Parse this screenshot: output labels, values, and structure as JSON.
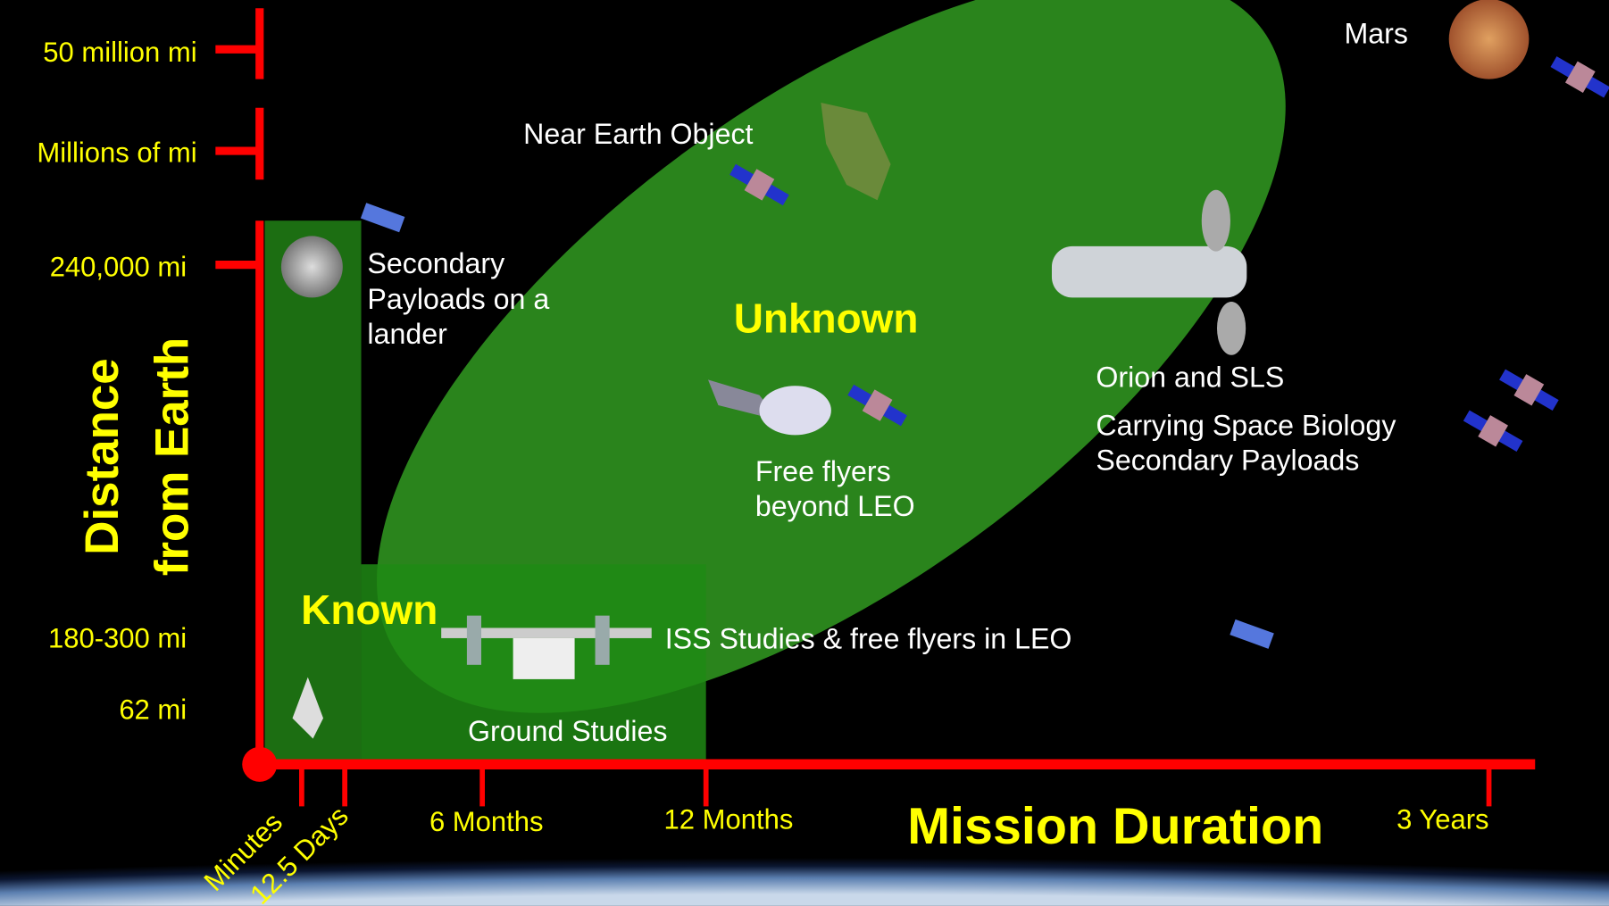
{
  "y_axis": {
    "title_lines": [
      "Distance",
      "from Earth"
    ],
    "labels": [
      "50 million mi",
      "Millions of mi",
      "240,000 mi",
      "180-300 mi",
      "62 mi"
    ]
  },
  "x_axis": {
    "title": "Mission Duration",
    "labels": [
      "Minutes",
      "12.5 Days",
      "6 Months",
      "12 Months",
      "3 Years"
    ]
  },
  "regions": {
    "known": "Known",
    "unknown": "Unknown"
  },
  "annotations": {
    "mars": "Mars",
    "near_earth_object": "Near Earth Object",
    "lander": [
      "Secondary",
      "Payloads on a",
      "lander"
    ],
    "free_flyers": [
      "Free flyers",
      "beyond LEO"
    ],
    "orion": "Orion and SLS",
    "space_biology": [
      "Carrying Space Biology",
      "Secondary Payloads"
    ],
    "iss": "ISS Studies & free flyers in LEO",
    "ground": "Ground Studies"
  }
}
